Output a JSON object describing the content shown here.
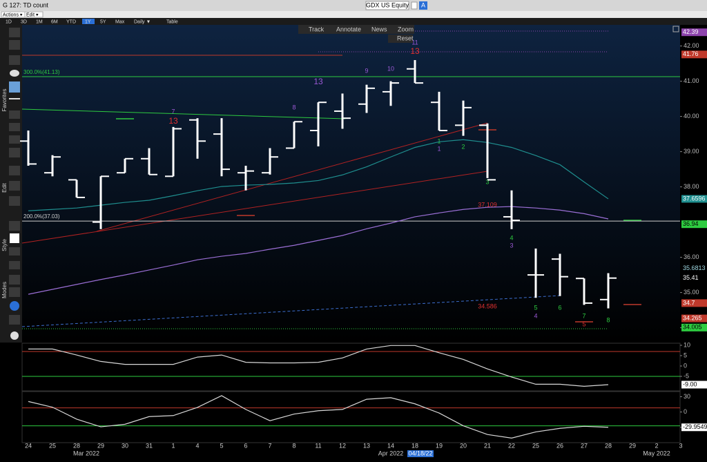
{
  "header": {
    "title": "G 127: TD count",
    "security": "GDX US Equity",
    "badge": "A",
    "menus": [
      "Actions ▾",
      "Edit ▾"
    ],
    "ranges": [
      "1D",
      "3D",
      "1M",
      "6M",
      "YTD",
      "1Y",
      "5Y",
      "Max",
      "Daily ▼",
      "Table"
    ]
  },
  "toolbar": [
    "Track",
    "Annotate",
    "News",
    "Zoom",
    "Reset"
  ],
  "sidebar_labels": [
    "Favorites",
    "Edit",
    "Style",
    "Modes"
  ],
  "chart_data": [
    {
      "type": "ohlc",
      "categories": [
        "24",
        "25",
        "28",
        "29",
        "30",
        "31",
        "1",
        "4",
        "5",
        "6",
        "7",
        "8",
        "11",
        "12",
        "13",
        "14",
        "18",
        "19",
        "20",
        "21",
        "22",
        "25",
        "26",
        "27",
        "28",
        "29",
        "2",
        "3"
      ],
      "open": [
        39.3,
        38.4,
        38.2,
        37.0,
        38.4,
        38.8,
        38.3,
        39.9,
        39.5,
        38.4,
        38.4,
        39.1,
        39.6,
        40.15,
        40.35,
        40.7,
        41.35,
        40.4,
        39.75,
        39.75,
        37.15,
        35.5,
        35.95,
        35.4,
        34.8,
        null,
        null,
        null
      ],
      "high": [
        39.6,
        38.9,
        38.2,
        38.3,
        38.8,
        39.1,
        39.7,
        39.95,
        39.95,
        38.6,
        39.1,
        39.85,
        40.4,
        40.65,
        40.9,
        41.0,
        41.6,
        40.7,
        40.45,
        39.8,
        37.9,
        36.25,
        36.1,
        35.4,
        35.55,
        null,
        null,
        null
      ],
      "low": [
        38.6,
        38.3,
        37.7,
        36.8,
        38.4,
        38.35,
        38.3,
        38.8,
        38.3,
        37.9,
        38.35,
        39.1,
        39.15,
        39.65,
        40.1,
        40.3,
        40.95,
        39.6,
        39.45,
        38.25,
        36.8,
        34.85,
        34.9,
        34.65,
        34.55,
        null,
        null,
        null
      ],
      "close": [
        38.65,
        38.85,
        37.7,
        38.3,
        38.8,
        38.35,
        39.65,
        39.3,
        38.5,
        38.45,
        38.85,
        39.85,
        40.4,
        39.95,
        40.8,
        40.95,
        40.95,
        39.6,
        40.25,
        38.2,
        37.05,
        35.5,
        35.45,
        34.7,
        35.41,
        null,
        null,
        null
      ],
      "color": "#ffffff",
      "series": [
        {
          "color": "#1f8f8f",
          "values": [
            37.32,
            37.36,
            37.4,
            37.48,
            37.56,
            37.62,
            37.75,
            37.89,
            38.01,
            38.05,
            38.07,
            38.11,
            38.18,
            38.34,
            38.57,
            38.85,
            39.12,
            39.28,
            39.34,
            39.26,
            39.12,
            38.89,
            38.63,
            38.14,
            37.66,
            null,
            null,
            null
          ]
        },
        {
          "color": "#9b6fd6",
          "values": [
            34.95,
            35.09,
            35.23,
            35.37,
            35.5,
            35.64,
            35.78,
            35.93,
            36.03,
            36.11,
            36.23,
            36.34,
            36.48,
            36.62,
            36.81,
            36.97,
            37.15,
            37.26,
            37.36,
            37.42,
            37.44,
            37.4,
            37.34,
            37.24,
            37.09,
            null,
            null,
            null
          ]
        }
      ],
      "ylim": [
        33.6,
        42.6
      ],
      "yticks": [
        {
          "value": 42,
          "label": "42.00"
        },
        {
          "value": 41,
          "label": "41.00"
        },
        {
          "value": 40,
          "label": "40.00"
        },
        {
          "value": 39,
          "label": "39.00"
        },
        {
          "value": 38,
          "label": "38.00"
        },
        {
          "value": 36,
          "label": "36.00"
        },
        {
          "value": 35,
          "label": "35.00"
        },
        {
          "value": 34,
          "label": "34.00"
        }
      ],
      "levels": [
        {
          "value": 41.13,
          "label": "300.0%(41.13)",
          "color": "#2ecc40"
        },
        {
          "value": 37.03,
          "label": "200.0%(37.03)",
          "color": "#d0d0d0"
        }
      ],
      "price_labels": [
        {
          "value": 42.39,
          "color": "#8e44ad",
          "text_color": "#ffffff"
        },
        {
          "value": 41.76,
          "color": "#c0392b",
          "text_color": "#ffffff"
        },
        {
          "value": 37.6596,
          "color": "#1f8f8f",
          "text_color": "#ffffff"
        },
        {
          "value": 36.94,
          "color": "#2ecc40",
          "text_color": "#000000"
        },
        {
          "value": 35.6813,
          "color": "#000000",
          "text_color": "#9fd8e0"
        },
        {
          "value": 35.41,
          "color": "#000000",
          "text_color": "#ffffff"
        },
        {
          "value": 34.7,
          "color": "#c0392b",
          "text_color": "#ffffff"
        },
        {
          "value": 34.265,
          "color": "#c0392b",
          "text_color": "#ffffff"
        },
        {
          "value": 34.005,
          "color": "#2ecc40",
          "text_color": "#000000"
        }
      ],
      "annotations": [
        "7",
        "13",
        "8",
        "13",
        "9",
        "10",
        "13",
        "11",
        "1",
        "1",
        "2",
        "3",
        "37.109",
        "4",
        "3",
        "5",
        "4",
        "6",
        "7",
        "5",
        "8",
        "34.586"
      ],
      "month_labels": [
        "Mar 2022",
        "Apr 2022",
        "04/18/22",
        "May 2022"
      ]
    },
    {
      "type": "line",
      "color": "#d8d8d8",
      "values": [
        8.2,
        8.2,
        5.3,
        2.2,
        0.8,
        0.8,
        0.8,
        4.3,
        5.3,
        1.8,
        1.5,
        1.5,
        1.8,
        3.9,
        8.2,
        9.9,
        9.9,
        6.4,
        3.2,
        -1.4,
        -5.3,
        -8.8,
        -8.8,
        -9.8,
        -9,
        null,
        null,
        null
      ],
      "ylim": [
        -12,
        11
      ],
      "yticks": [
        10,
        5,
        0,
        -5
      ],
      "levels": [
        {
          "value": 7,
          "color": "#c0392b"
        },
        {
          "value": -5,
          "color": "#2ecc40"
        }
      ],
      "last_label": {
        "value": -9,
        "label": "-9.00"
      }
    },
    {
      "type": "line",
      "color": "#d8d8d8",
      "values": [
        20.6,
        9.4,
        -14,
        -29,
        -24,
        -9,
        -7,
        9,
        32,
        5,
        -17,
        -4,
        2.5,
        5,
        25,
        28,
        16,
        -2,
        -27,
        -44,
        -51,
        -39,
        -32,
        -28,
        -29.9549,
        null,
        null,
        null
      ],
      "ylim": [
        -60,
        40
      ],
      "yticks": [
        30,
        0,
        -30
      ],
      "levels": [
        {
          "value": 8,
          "color": "#c0392b"
        },
        {
          "value": -27,
          "color": "#2ecc40"
        }
      ],
      "last_label": -29.9549
    }
  ]
}
